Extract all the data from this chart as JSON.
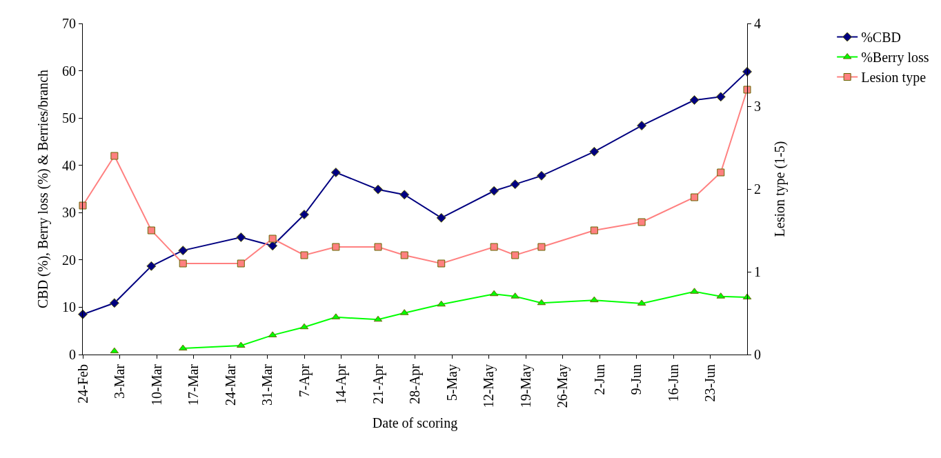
{
  "chart_data": {
    "type": "line",
    "xlabel": "Date of scoring",
    "ylabel": "CBD (%), Berry loss (%) & Berries/branch",
    "y2label": "Lesion type (1-5)",
    "x": [
      "--02-24",
      "--03-02",
      "--03-09",
      "--03-15",
      "--03-26",
      "--04-01",
      "--04-07",
      "--04-13",
      "--04-21",
      "--04-26",
      "--05-03",
      "--05-13",
      "--05-17",
      "--05-22",
      "--06-01",
      "--06-10",
      "--06-20",
      "--06-25",
      "--06-30"
    ],
    "series": [
      {
        "name": "%CBD",
        "color": "#000080",
        "marker": "diamond",
        "values": [
          8.5,
          10.9,
          18.7,
          22,
          24.8,
          23,
          29.6,
          38.5,
          34.9,
          33.8,
          28.9,
          34.6,
          36,
          37.8,
          42.9,
          48.4,
          53.8,
          54.5,
          59.8
        ]
      },
      {
        "name": "%Berry loss",
        "color": "#00ff00",
        "marker": "triangle",
        "values": [
          null,
          0.7,
          null,
          1.3,
          1.9,
          4.1,
          5.8,
          7.9,
          7.4,
          8.8,
          10.6,
          12.8,
          12.3,
          10.9,
          11.5,
          10.8,
          13.3,
          12.3,
          12.1
        ]
      },
      {
        "name": "Lesion type",
        "color": "#ff8080",
        "marker": "square",
        "axis": "y2",
        "values": [
          1.8,
          2.4,
          1.5,
          1.1,
          1.1,
          1.4,
          1.2,
          1.3,
          1.3,
          1.2,
          1.1,
          1.3,
          1.2,
          1.3,
          1.5,
          1.6,
          1.9,
          2.2,
          3.2
        ]
      }
    ],
    "xlim": [
      "--02-24",
      "--06-30"
    ],
    "xticks": [
      {
        "value": "--02-24",
        "label": "24-Feb"
      },
      {
        "value": "--03-03",
        "label": "3-Mar"
      },
      {
        "value": "--03-10",
        "label": "10-Mar"
      },
      {
        "value": "--03-17",
        "label": "17-Mar"
      },
      {
        "value": "--03-24",
        "label": "24-Mar"
      },
      {
        "value": "--03-31",
        "label": "31-Mar"
      },
      {
        "value": "--04-07",
        "label": "7-Apr"
      },
      {
        "value": "--04-14",
        "label": "14-Apr"
      },
      {
        "value": "--04-21",
        "label": "21-Apr"
      },
      {
        "value": "--04-28",
        "label": "28-Apr"
      },
      {
        "value": "--05-05",
        "label": "5-May"
      },
      {
        "value": "--05-12",
        "label": "12-May"
      },
      {
        "value": "--05-19",
        "label": "19-May"
      },
      {
        "value": "--05-26",
        "label": "26-May"
      },
      {
        "value": "--06-02",
        "label": "2-Jun"
      },
      {
        "value": "--06-09",
        "label": "9-Jun"
      },
      {
        "value": "--06-16",
        "label": "16-Jun"
      },
      {
        "value": "--06-23",
        "label": "23-Jun"
      }
    ],
    "ylim": [
      0,
      70
    ],
    "yticks": [
      0,
      10,
      20,
      30,
      40,
      50,
      60,
      70
    ],
    "y2lim": [
      0,
      4
    ],
    "y2ticks": [
      0,
      1,
      2,
      3,
      4
    ],
    "legend": "top right",
    "line_style": "solid"
  }
}
